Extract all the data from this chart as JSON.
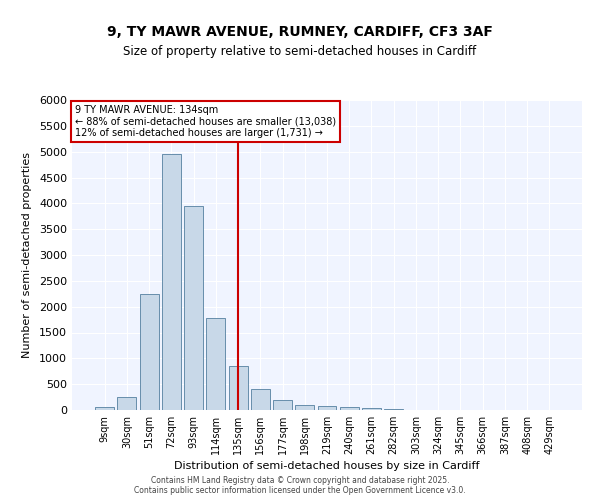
{
  "title_line1": "9, TY MAWR AVENUE, RUMNEY, CARDIFF, CF3 3AF",
  "title_line2": "Size of property relative to semi-detached houses in Cardiff",
  "xlabel": "Distribution of semi-detached houses by size in Cardiff",
  "ylabel": "Number of semi-detached properties",
  "bar_labels": [
    "9sqm",
    "30sqm",
    "51sqm",
    "72sqm",
    "93sqm",
    "114sqm",
    "135sqm",
    "156sqm",
    "177sqm",
    "198sqm",
    "219sqm",
    "240sqm",
    "261sqm",
    "282sqm",
    "303sqm",
    "324sqm",
    "345sqm",
    "366sqm",
    "387sqm",
    "408sqm",
    "429sqm"
  ],
  "bar_values": [
    50,
    250,
    2250,
    4950,
    3950,
    1780,
    850,
    400,
    200,
    100,
    70,
    55,
    40,
    15,
    5,
    5,
    3,
    3,
    2,
    2,
    2
  ],
  "bar_color": "#c8d8e8",
  "bar_edge_color": "#5580a0",
  "background_color": "#f0f4ff",
  "grid_color": "#ffffff",
  "annotation_text": "9 TY MAWR AVENUE: 134sqm\n← 88% of semi-detached houses are smaller (13,038)\n12% of semi-detached houses are larger (1,731) →",
  "vline_x_index": 6,
  "vline_color": "#cc0000",
  "annotation_box_color": "#cc0000",
  "ylim": [
    0,
    6000
  ],
  "yticks": [
    0,
    500,
    1000,
    1500,
    2000,
    2500,
    3000,
    3500,
    4000,
    4500,
    5000,
    5500,
    6000
  ],
  "footer_line1": "Contains HM Land Registry data © Crown copyright and database right 2025.",
  "footer_line2": "Contains public sector information licensed under the Open Government Licence v3.0.",
  "bin_width": 21
}
